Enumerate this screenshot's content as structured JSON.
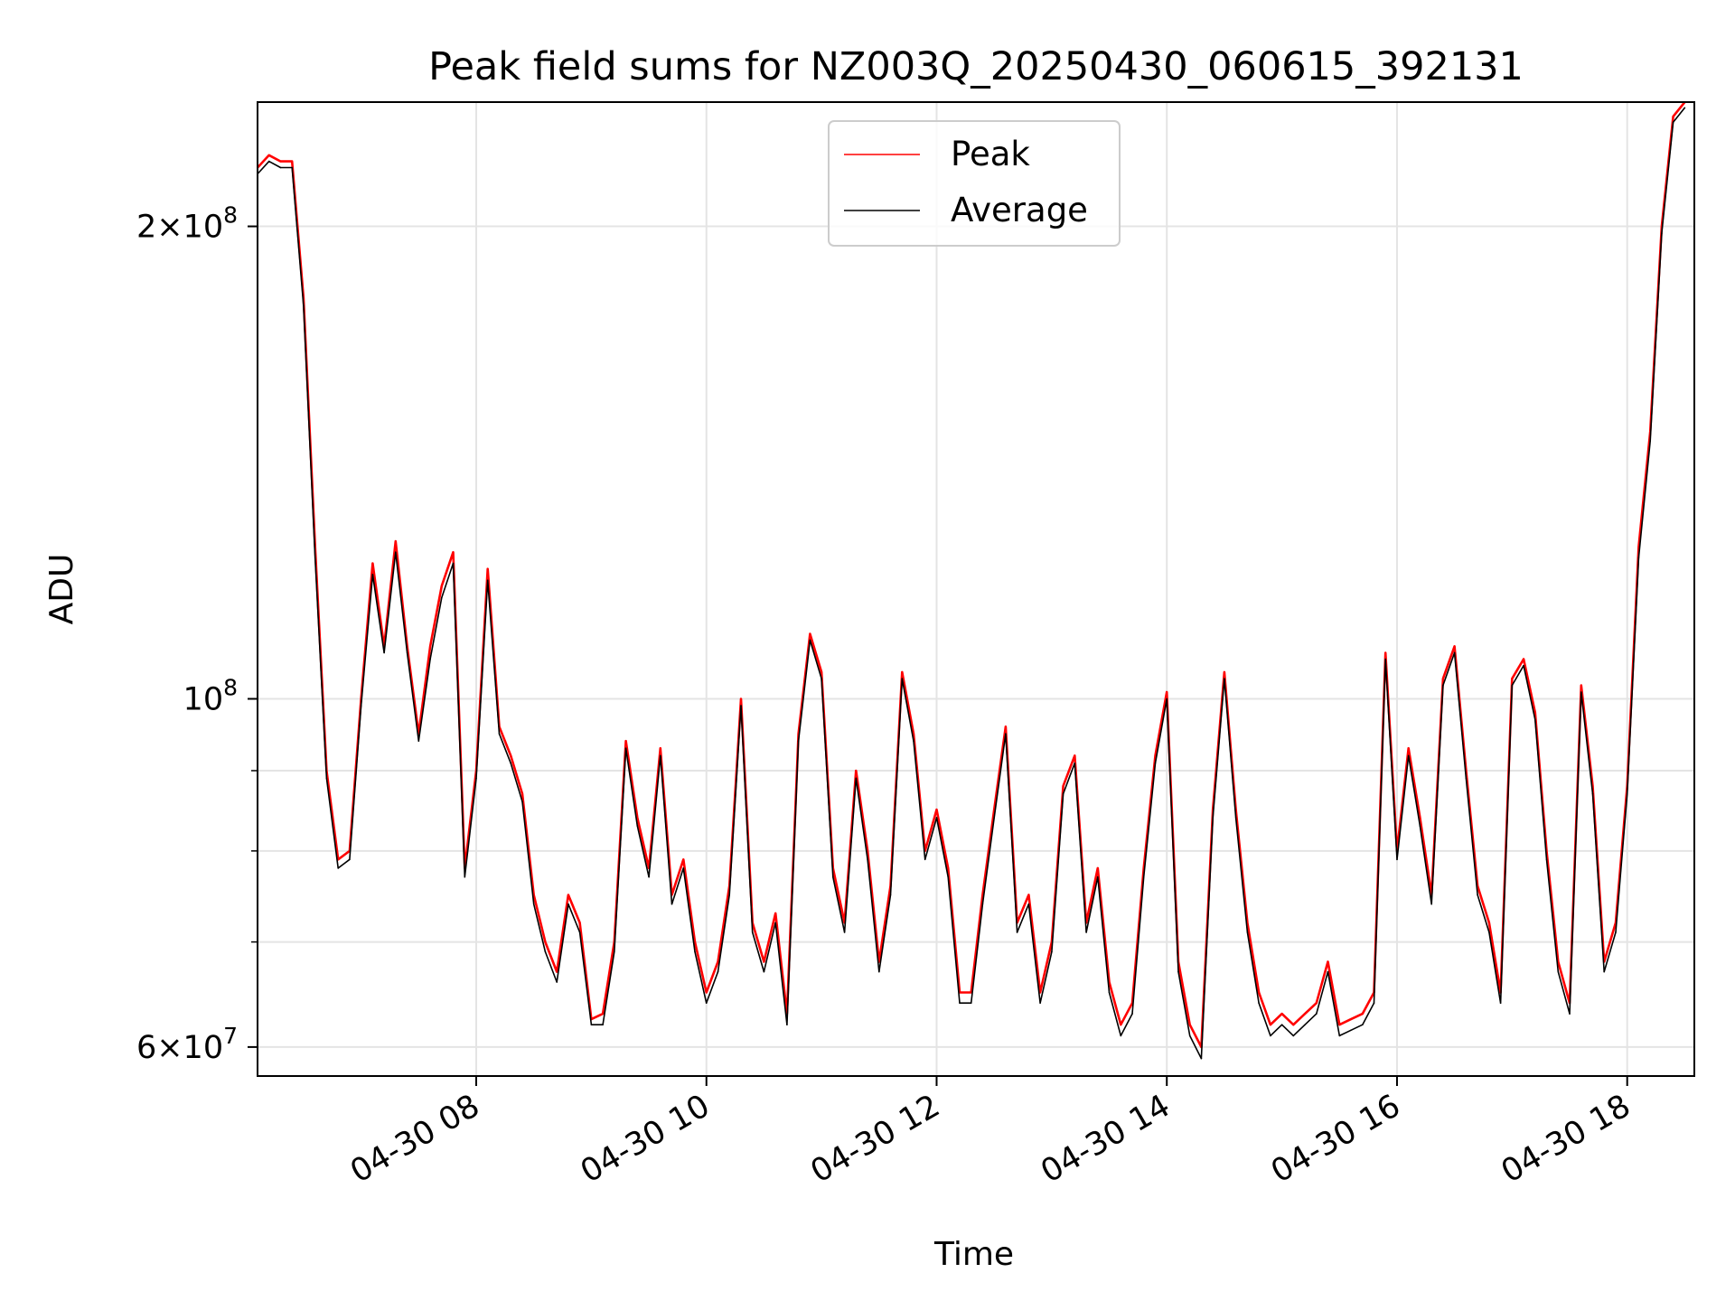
{
  "chart_data": {
    "type": "line",
    "title": "Peak field sums for NZ003Q_20250430_060615_392131",
    "xlabel": "Time",
    "ylabel": "ADU",
    "y_scale": "log",
    "ylim": [
      57500000,
      240000000
    ],
    "xlim": [
      "2025-04-30 06:06",
      "2025-04-30 18:35"
    ],
    "grid": true,
    "legend_position": "top-center",
    "x_ticks": [
      "04-30 08",
      "04-30 10",
      "04-30 12",
      "04-30 14",
      "04-30 16",
      "04-30 18"
    ],
    "y_tick_labels": [
      {
        "value": 200000000,
        "mantissa": "2",
        "exponent": "8"
      },
      {
        "value": 100000000,
        "mantissa": "",
        "exponent": "8"
      },
      {
        "value": 60000000,
        "mantissa": "6",
        "exponent": "7"
      }
    ],
    "x": [
      "06:06",
      "06:12",
      "06:18",
      "06:24",
      "06:30",
      "06:36",
      "06:42",
      "06:48",
      "06:54",
      "07:00",
      "07:06",
      "07:12",
      "07:18",
      "07:24",
      "07:30",
      "07:36",
      "07:42",
      "07:48",
      "07:54",
      "08:00",
      "08:06",
      "08:12",
      "08:18",
      "08:24",
      "08:30",
      "08:36",
      "08:42",
      "08:48",
      "08:54",
      "09:00",
      "09:06",
      "09:12",
      "09:18",
      "09:24",
      "09:30",
      "09:36",
      "09:42",
      "09:48",
      "09:54",
      "10:00",
      "10:06",
      "10:12",
      "10:18",
      "10:24",
      "10:30",
      "10:36",
      "10:42",
      "10:48",
      "10:54",
      "11:00",
      "11:06",
      "11:12",
      "11:18",
      "11:24",
      "11:30",
      "11:36",
      "11:42",
      "11:48",
      "11:54",
      "12:00",
      "12:06",
      "12:12",
      "12:18",
      "12:24",
      "12:30",
      "12:36",
      "12:42",
      "12:48",
      "12:54",
      "13:00",
      "13:06",
      "13:12",
      "13:18",
      "13:24",
      "13:30",
      "13:36",
      "13:42",
      "13:48",
      "13:54",
      "14:00",
      "14:06",
      "14:12",
      "14:18",
      "14:24",
      "14:30",
      "14:36",
      "14:42",
      "14:48",
      "14:54",
      "15:00",
      "15:06",
      "15:12",
      "15:18",
      "15:24",
      "15:30",
      "15:36",
      "15:42",
      "15:48",
      "15:54",
      "16:00",
      "16:06",
      "16:12",
      "16:18",
      "16:24",
      "16:30",
      "16:36",
      "16:42",
      "16:48",
      "16:54",
      "17:00",
      "17:06",
      "17:12",
      "17:18",
      "17:24",
      "17:30",
      "17:36",
      "17:42",
      "17:48",
      "17:54",
      "18:00",
      "18:06",
      "18:12",
      "18:18",
      "18:24",
      "18:30"
    ],
    "series": [
      {
        "name": "Peak",
        "color": "#ff0000",
        "values": [
          218000000,
          222000000,
          220000000,
          220000000,
          180000000,
          125000000,
          90000000,
          79000000,
          80000000,
          100000000,
          122000000,
          108000000,
          126000000,
          108000000,
          95000000,
          108000000,
          118000000,
          124000000,
          78000000,
          90000000,
          121000000,
          96000000,
          92000000,
          87000000,
          75000000,
          70000000,
          67000000,
          75000000,
          72000000,
          62500000,
          63000000,
          70000000,
          94000000,
          84000000,
          78000000,
          93000000,
          75000000,
          79000000,
          70000000,
          65000000,
          68000000,
          76000000,
          100000000,
          72000000,
          68000000,
          73000000,
          63000000,
          95000000,
          110000000,
          104000000,
          78000000,
          72000000,
          90000000,
          80000000,
          68000000,
          76000000,
          104000000,
          95000000,
          80000000,
          85000000,
          78000000,
          65000000,
          65000000,
          75000000,
          85000000,
          96000000,
          72000000,
          75000000,
          65000000,
          70000000,
          88000000,
          92000000,
          72000000,
          78000000,
          66000000,
          62000000,
          64000000,
          78000000,
          92000000,
          101000000,
          68000000,
          62000000,
          60000000,
          85000000,
          104000000,
          85000000,
          72000000,
          65000000,
          62000000,
          63000000,
          62000000,
          63000000,
          64000000,
          68000000,
          62000000,
          62500000,
          63000000,
          65000000,
          107000000,
          80000000,
          93000000,
          84000000,
          75000000,
          103000000,
          108000000,
          90000000,
          76000000,
          72000000,
          65000000,
          103000000,
          106000000,
          98000000,
          80000000,
          68000000,
          64000000,
          102000000,
          88000000,
          68000000,
          72000000,
          88000000,
          125000000,
          148000000,
          200000000,
          235000000,
          240000000
        ]
      },
      {
        "name": "Average",
        "color": "#000000",
        "values": [
          216000000,
          220000000,
          218000000,
          218000000,
          178000000,
          123000000,
          89000000,
          78000000,
          79000000,
          99000000,
          120000000,
          107000000,
          124000000,
          107000000,
          94000000,
          106000000,
          116000000,
          122000000,
          77000000,
          89000000,
          119000000,
          95000000,
          91000000,
          86000000,
          74000000,
          69000000,
          66000000,
          74000000,
          71000000,
          62000000,
          62000000,
          69000000,
          93000000,
          83000000,
          77000000,
          92000000,
          74000000,
          78000000,
          69000000,
          64000000,
          67000000,
          75000000,
          99000000,
          71000000,
          67000000,
          72000000,
          62000000,
          94000000,
          109000000,
          103000000,
          77000000,
          71000000,
          89000000,
          79000000,
          67000000,
          75000000,
          103000000,
          94000000,
          79000000,
          84000000,
          77000000,
          64000000,
          64000000,
          74000000,
          84000000,
          95000000,
          71000000,
          74000000,
          64000000,
          69000000,
          87000000,
          91000000,
          71000000,
          77000000,
          65000000,
          61000000,
          63000000,
          77000000,
          91000000,
          100000000,
          67000000,
          61000000,
          59000000,
          84000000,
          103000000,
          84000000,
          71000000,
          64000000,
          61000000,
          62000000,
          61000000,
          62000000,
          63000000,
          67000000,
          61000000,
          61500000,
          62000000,
          64000000,
          106000000,
          79000000,
          92000000,
          83000000,
          74000000,
          102000000,
          107000000,
          89000000,
          75000000,
          71000000,
          64000000,
          102000000,
          105000000,
          97000000,
          79000000,
          67000000,
          63000000,
          101000000,
          87000000,
          67000000,
          71000000,
          87000000,
          123000000,
          146000000,
          198000000,
          233000000,
          238000000
        ]
      }
    ]
  }
}
